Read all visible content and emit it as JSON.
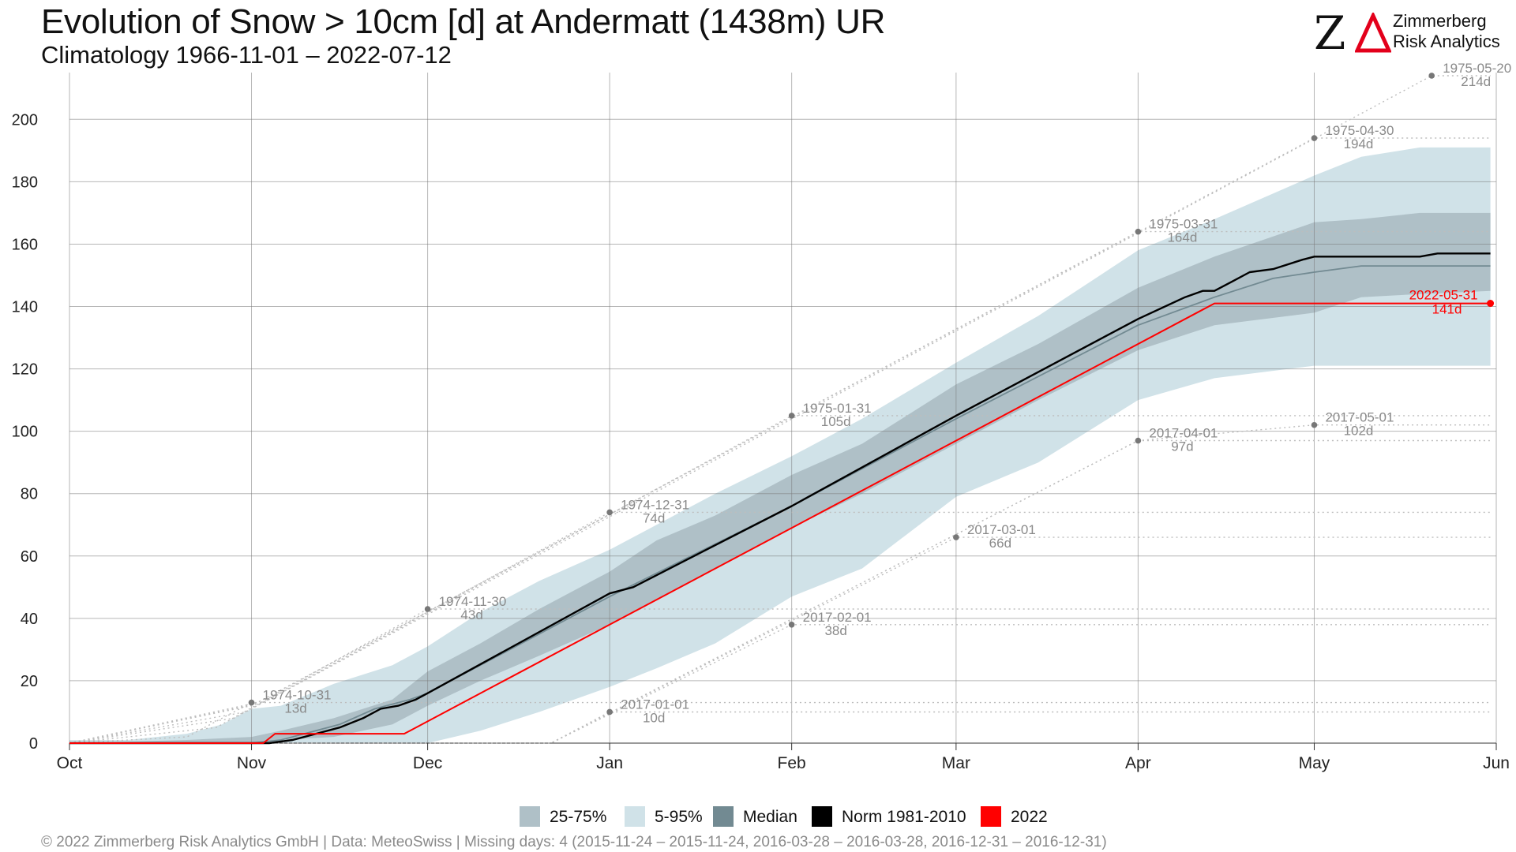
{
  "title": "Evolution of Snow > 10cm [d] at Andermatt (1438m) UR",
  "subtitle": "Climatology 1966-11-01 – 2022-07-12",
  "logo": {
    "mark": "Z",
    "line1": "Zimmerberg",
    "line2": "Risk Analytics",
    "accent_color": "#e3001b"
  },
  "footer": "©  2022 Zimmerberg Risk Analytics GmbH | Data: MeteoSwiss | Missing days: 4 (2015-11-24 – 2015-11-24, 2016-03-28 – 2016-03-28, 2016-12-31 – 2016-12-31)",
  "legend": [
    {
      "label": "25-75%",
      "color": "#afc0c7"
    },
    {
      "label": "5-95%",
      "color": "#d0e2e8"
    },
    {
      "label": "Median",
      "color": "#728a92"
    },
    {
      "label": "Norm 1981-2010",
      "color": "#000000"
    },
    {
      "label": "2022",
      "color": "#ff0000"
    }
  ],
  "chart_data": {
    "type": "area",
    "title": "Evolution of Snow > 10cm [d] at Andermatt (1438m) UR",
    "subtitle": "Climatology 1966-11-01 – 2022-07-12",
    "xlabel": "",
    "ylabel": "",
    "x_unit": "days since Oct 1",
    "xlim": [
      0,
      243
    ],
    "ylim": [
      0,
      215
    ],
    "yticks": [
      0,
      20,
      40,
      60,
      80,
      100,
      120,
      140,
      160,
      180,
      200
    ],
    "xticks": [
      {
        "label": "Oct",
        "x": 0
      },
      {
        "label": "Nov",
        "x": 31
      },
      {
        "label": "Dec",
        "x": 61
      },
      {
        "label": "Jan",
        "x": 92
      },
      {
        "label": "Feb",
        "x": 123
      },
      {
        "label": "Mar",
        "x": 151
      },
      {
        "label": "Apr",
        "x": 182
      },
      {
        "label": "May",
        "x": 212
      },
      {
        "label": "Jun",
        "x": 243
      }
    ],
    "grid": true,
    "legend_position": "bottom",
    "colors": {
      "band_5_95": "#d0e2e8",
      "band_25_75": "#afc0c7",
      "median": "#728a92",
      "norm": "#000000",
      "year": "#ff0000",
      "annotation": "#8a8a8a"
    },
    "band_5_95": {
      "x": [
        0,
        10,
        20,
        26,
        31,
        36,
        45,
        55,
        61,
        70,
        80,
        92,
        100,
        110,
        123,
        135,
        151,
        165,
        182,
        195,
        212,
        220,
        230,
        242
      ],
      "lower": [
        0,
        0,
        0,
        0,
        0,
        0,
        0,
        0,
        0,
        4,
        10,
        18,
        24,
        32,
        47,
        56,
        79,
        90,
        110,
        117,
        121,
        121,
        121,
        121
      ],
      "upper": [
        1,
        1,
        3,
        6,
        11,
        12,
        19,
        25,
        31,
        42,
        52,
        62,
        70,
        80,
        92,
        104,
        122,
        137,
        158,
        168,
        182,
        188,
        191,
        191
      ]
    },
    "band_25_75": {
      "x": [
        0,
        20,
        31,
        36,
        45,
        55,
        61,
        70,
        80,
        92,
        100,
        110,
        123,
        135,
        151,
        165,
        182,
        195,
        212,
        220,
        230,
        242
      ],
      "lower": [
        0,
        0,
        0,
        1,
        2,
        6,
        12,
        20,
        28,
        38,
        46,
        56,
        69,
        80,
        96,
        110,
        126,
        134,
        138,
        143,
        144,
        145
      ],
      "upper": [
        0,
        1,
        2,
        4,
        8,
        14,
        23,
        32,
        43,
        55,
        65,
        73,
        86,
        96,
        115,
        128,
        146,
        156,
        167,
        168,
        170,
        170
      ]
    },
    "series": [
      {
        "name": "Median",
        "x": [
          0,
          31,
          36,
          40,
          46,
          52,
          58,
          61,
          92,
          123,
          151,
          182,
          195,
          205,
          212,
          220,
          230,
          242
        ],
        "values": [
          0,
          0,
          1,
          3,
          6,
          11,
          14,
          16,
          47,
          76,
          104,
          134,
          143,
          149,
          151,
          153,
          153,
          153
        ]
      },
      {
        "name": "Norm 1981-2010",
        "x": [
          0,
          34,
          38,
          42,
          46,
          50,
          53,
          56,
          59,
          61,
          92,
          96,
          123,
          151,
          182,
          190,
          193,
          195,
          198,
          201,
          205,
          210,
          212,
          230,
          233,
          235,
          242
        ],
        "values": [
          0,
          0,
          1,
          3,
          5,
          8,
          11,
          12,
          14,
          16,
          48,
          50,
          76,
          105,
          136,
          143,
          145,
          145,
          148,
          151,
          152,
          155,
          156,
          156,
          157,
          157,
          157
        ]
      },
      {
        "name": "2022",
        "x": [
          0,
          33,
          35,
          57,
          58,
          195,
          242
        ],
        "values": [
          0,
          0,
          3,
          3,
          4,
          141,
          141
        ]
      }
    ],
    "max_lines": [
      {
        "label_date": "1974-10-31",
        "label_value": "13d",
        "points": [
          [
            0,
            0
          ],
          [
            20,
            2
          ],
          [
            31,
            13
          ]
        ]
      },
      {
        "label_date": "1974-11-30",
        "label_value": "43d",
        "points": [
          [
            0,
            0
          ],
          [
            25,
            5
          ],
          [
            61,
            43
          ]
        ]
      },
      {
        "label_date": "1974-12-31",
        "label_value": "74d",
        "points": [
          [
            0,
            0
          ],
          [
            28,
            8
          ],
          [
            92,
            74
          ]
        ]
      },
      {
        "label_date": "1975-01-31",
        "label_value": "105d",
        "points": [
          [
            0,
            0
          ],
          [
            30,
            10
          ],
          [
            123,
            105
          ]
        ]
      },
      {
        "label_date": "1975-03-31",
        "label_value": "164d",
        "points": [
          [
            0,
            0
          ],
          [
            31,
            12
          ],
          [
            182,
            164
          ]
        ]
      },
      {
        "label_date": "1975-04-30",
        "label_value": "194d",
        "points": [
          [
            0,
            0
          ],
          [
            32,
            13
          ],
          [
            212,
            194
          ]
        ]
      },
      {
        "label_date": "1975-05-20",
        "label_value": "214d",
        "points": [
          [
            0,
            0
          ],
          [
            33,
            13
          ],
          [
            232,
            214
          ]
        ]
      }
    ],
    "min_lines": [
      {
        "label_date": "2017-01-01",
        "label_value": "10d",
        "points": [
          [
            0,
            0
          ],
          [
            82,
            0
          ],
          [
            92,
            10
          ]
        ]
      },
      {
        "label_date": "2017-02-01",
        "label_value": "38d",
        "points": [
          [
            0,
            0
          ],
          [
            82,
            0
          ],
          [
            123,
            38
          ]
        ]
      },
      {
        "label_date": "2017-03-01",
        "label_value": "66d",
        "points": [
          [
            0,
            0
          ],
          [
            82,
            0
          ],
          [
            151,
            66
          ]
        ]
      },
      {
        "label_date": "2017-04-01",
        "label_value": "97d",
        "points": [
          [
            0,
            0
          ],
          [
            82,
            0
          ],
          [
            182,
            97
          ]
        ]
      },
      {
        "label_date": "2017-05-01",
        "label_value": "102d",
        "points": [
          [
            0,
            0
          ],
          [
            82,
            0
          ],
          [
            182,
            97
          ],
          [
            212,
            102
          ]
        ]
      }
    ],
    "annotations": [
      {
        "x": 31,
        "y": 13,
        "date": "1974-10-31",
        "value": "13d",
        "type": "max"
      },
      {
        "x": 61,
        "y": 43,
        "date": "1974-11-30",
        "value": "43d",
        "type": "max"
      },
      {
        "x": 92,
        "y": 74,
        "date": "1974-12-31",
        "value": "74d",
        "type": "max"
      },
      {
        "x": 123,
        "y": 105,
        "date": "1975-01-31",
        "value": "105d",
        "type": "max"
      },
      {
        "x": 182,
        "y": 164,
        "date": "1975-03-31",
        "value": "164d",
        "type": "max"
      },
      {
        "x": 212,
        "y": 194,
        "date": "1975-04-30",
        "value": "194d",
        "type": "max"
      },
      {
        "x": 232,
        "y": 214,
        "date": "1975-05-20",
        "value": "214d",
        "type": "max"
      },
      {
        "x": 92,
        "y": 10,
        "date": "2017-01-01",
        "value": "10d",
        "type": "min"
      },
      {
        "x": 123,
        "y": 38,
        "date": "2017-02-01",
        "value": "38d",
        "type": "min"
      },
      {
        "x": 151,
        "y": 66,
        "date": "2017-03-01",
        "value": "66d",
        "type": "min"
      },
      {
        "x": 182,
        "y": 97,
        "date": "2017-04-01",
        "value": "97d",
        "type": "min"
      },
      {
        "x": 212,
        "y": 102,
        "date": "2017-05-01",
        "value": "102d",
        "type": "min"
      },
      {
        "x": 242,
        "y": 141,
        "date": "2022-05-31",
        "value": "141d",
        "type": "current"
      }
    ]
  }
}
